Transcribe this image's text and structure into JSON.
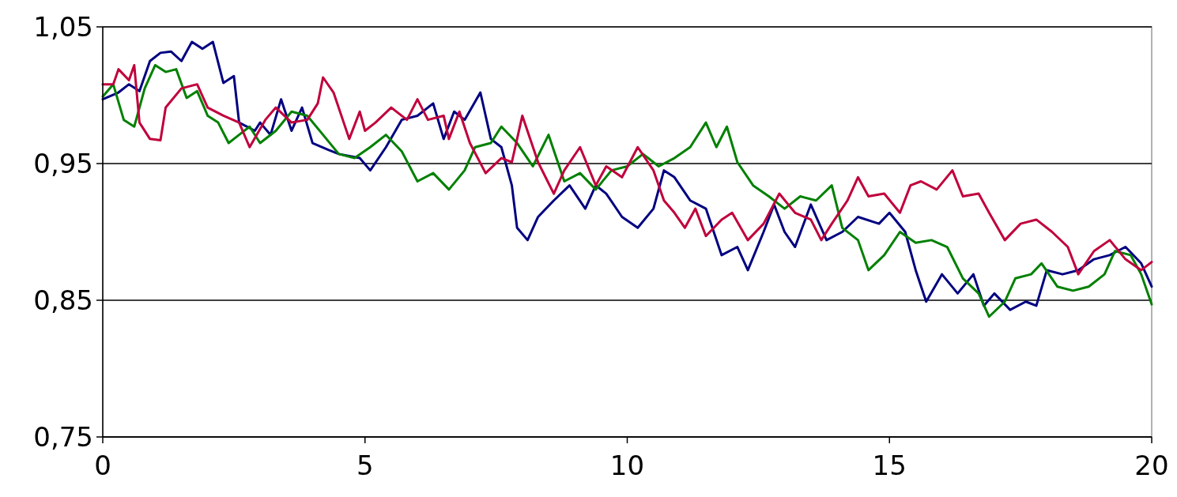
{
  "chart_data": {
    "type": "line",
    "xlim": [
      0,
      20
    ],
    "xticks": [
      0,
      5,
      10,
      15,
      20
    ],
    "ylim": [
      0.75,
      1.05
    ],
    "yticks": [
      {
        "value": 0.75,
        "label": "0,75"
      },
      {
        "value": 0.85,
        "label": "0,85"
      },
      {
        "value": 0.95,
        "label": "0,95"
      },
      {
        "value": 1.05,
        "label": "1,05"
      }
    ],
    "grid": "y",
    "marker": "none",
    "line_style": "solid",
    "series": [
      {
        "color": "#000080",
        "x": [
          0,
          0.3,
          0.5,
          0.7,
          0.9,
          1.1,
          1.3,
          1.5,
          1.7,
          1.9,
          2.1,
          2.3,
          2.5,
          2.6,
          2.9,
          3.0,
          3.2,
          3.4,
          3.6,
          3.8,
          4.0,
          4.3,
          4.5,
          4.9,
          5.1,
          5.4,
          5.7,
          6.0,
          6.3,
          6.5,
          6.7,
          6.9,
          7.2,
          7.4,
          7.6,
          7.8,
          7.9,
          8.1,
          8.3,
          8.6,
          8.9,
          9.2,
          9.4,
          9.6,
          9.9,
          10.2,
          10.5,
          10.7,
          10.9,
          11.2,
          11.5,
          11.8,
          12.1,
          12.3,
          12.6,
          12.8,
          13.0,
          13.2,
          13.5,
          13.8,
          14.1,
          14.4,
          14.8,
          15.0,
          15.3,
          15.5,
          15.7,
          16.0,
          16.3,
          16.6,
          16.8,
          17.0,
          17.3,
          17.6,
          17.8,
          18.0,
          18.3,
          18.6,
          18.9,
          19.2,
          19.5,
          19.8,
          20.0
        ],
        "values": [
          0.997,
          1.002,
          1.008,
          1.003,
          1.025,
          1.031,
          1.032,
          1.025,
          1.039,
          1.034,
          1.039,
          1.009,
          1.014,
          0.98,
          0.974,
          0.98,
          0.971,
          0.997,
          0.974,
          0.991,
          0.965,
          0.96,
          0.957,
          0.954,
          0.945,
          0.962,
          0.982,
          0.985,
          0.994,
          0.968,
          0.988,
          0.982,
          1.002,
          0.968,
          0.962,
          0.934,
          0.903,
          0.894,
          0.911,
          0.923,
          0.934,
          0.917,
          0.934,
          0.928,
          0.911,
          0.903,
          0.917,
          0.945,
          0.94,
          0.923,
          0.917,
          0.883,
          0.889,
          0.872,
          0.9,
          0.92,
          0.9,
          0.889,
          0.92,
          0.894,
          0.9,
          0.911,
          0.906,
          0.914,
          0.9,
          0.872,
          0.849,
          0.869,
          0.855,
          0.869,
          0.846,
          0.855,
          0.843,
          0.849,
          0.846,
          0.872,
          0.869,
          0.872,
          0.88,
          0.883,
          0.889,
          0.877,
          0.86
        ]
      },
      {
        "color": "#008000",
        "x": [
          0,
          0.2,
          0.4,
          0.6,
          0.8,
          1.0,
          1.2,
          1.4,
          1.6,
          1.8,
          2.0,
          2.2,
          2.4,
          2.6,
          2.8,
          3.0,
          3.3,
          3.6,
          3.9,
          4.2,
          4.5,
          4.8,
          5.1,
          5.4,
          5.7,
          6.0,
          6.3,
          6.6,
          6.9,
          7.1,
          7.4,
          7.6,
          7.9,
          8.2,
          8.5,
          8.8,
          9.1,
          9.4,
          9.7,
          10.0,
          10.3,
          10.6,
          10.9,
          11.2,
          11.5,
          11.7,
          11.9,
          12.1,
          12.4,
          12.7,
          13.0,
          13.3,
          13.6,
          13.9,
          14.1,
          14.4,
          14.6,
          14.9,
          15.2,
          15.5,
          15.8,
          16.1,
          16.4,
          16.7,
          16.9,
          17.2,
          17.4,
          17.7,
          17.9,
          18.2,
          18.5,
          18.8,
          19.1,
          19.3,
          19.6,
          19.8,
          20.0
        ],
        "values": [
          0.999,
          1.008,
          0.982,
          0.977,
          1.005,
          1.022,
          1.017,
          1.019,
          0.998,
          1.003,
          0.985,
          0.98,
          0.965,
          0.971,
          0.977,
          0.965,
          0.974,
          0.988,
          0.985,
          0.971,
          0.957,
          0.954,
          0.962,
          0.971,
          0.959,
          0.937,
          0.943,
          0.931,
          0.945,
          0.962,
          0.965,
          0.977,
          0.965,
          0.948,
          0.971,
          0.937,
          0.943,
          0.931,
          0.945,
          0.948,
          0.957,
          0.948,
          0.954,
          0.962,
          0.98,
          0.962,
          0.977,
          0.951,
          0.934,
          0.926,
          0.917,
          0.926,
          0.923,
          0.934,
          0.903,
          0.894,
          0.872,
          0.883,
          0.9,
          0.892,
          0.894,
          0.889,
          0.866,
          0.855,
          0.838,
          0.849,
          0.866,
          0.869,
          0.877,
          0.86,
          0.857,
          0.86,
          0.869,
          0.886,
          0.883,
          0.869,
          0.847
        ]
      },
      {
        "color": "#c0003c",
        "x": [
          0,
          0.2,
          0.3,
          0.5,
          0.6,
          0.7,
          0.9,
          1.1,
          1.2,
          1.5,
          1.8,
          2.0,
          2.3,
          2.6,
          2.8,
          3.1,
          3.3,
          3.6,
          3.9,
          4.1,
          4.2,
          4.4,
          4.7,
          4.9,
          5.0,
          5.2,
          5.5,
          5.8,
          6.0,
          6.2,
          6.5,
          6.6,
          6.8,
          7.0,
          7.3,
          7.6,
          7.8,
          8.0,
          8.3,
          8.6,
          8.8,
          9.1,
          9.4,
          9.6,
          9.9,
          10.2,
          10.5,
          10.7,
          10.9,
          11.1,
          11.3,
          11.5,
          11.8,
          12.0,
          12.3,
          12.6,
          12.9,
          13.2,
          13.5,
          13.7,
          13.9,
          14.2,
          14.4,
          14.6,
          14.9,
          15.2,
          15.4,
          15.6,
          15.9,
          16.2,
          16.4,
          16.7,
          16.9,
          17.2,
          17.5,
          17.8,
          18.1,
          18.4,
          18.6,
          18.9,
          19.2,
          19.5,
          19.8,
          20.0
        ],
        "values": [
          1.008,
          1.008,
          1.019,
          1.011,
          1.022,
          0.98,
          0.968,
          0.967,
          0.991,
          1.005,
          1.008,
          0.991,
          0.985,
          0.98,
          0.962,
          0.982,
          0.991,
          0.98,
          0.982,
          0.994,
          1.013,
          1.002,
          0.968,
          0.988,
          0.974,
          0.98,
          0.991,
          0.982,
          0.997,
          0.982,
          0.985,
          0.968,
          0.988,
          0.965,
          0.943,
          0.954,
          0.951,
          0.985,
          0.951,
          0.928,
          0.945,
          0.962,
          0.934,
          0.948,
          0.94,
          0.962,
          0.945,
          0.923,
          0.914,
          0.903,
          0.917,
          0.897,
          0.909,
          0.914,
          0.894,
          0.906,
          0.928,
          0.914,
          0.909,
          0.894,
          0.906,
          0.923,
          0.94,
          0.926,
          0.928,
          0.914,
          0.934,
          0.937,
          0.931,
          0.945,
          0.926,
          0.928,
          0.914,
          0.894,
          0.906,
          0.909,
          0.9,
          0.889,
          0.869,
          0.886,
          0.894,
          0.88,
          0.872,
          0.878
        ]
      }
    ]
  }
}
